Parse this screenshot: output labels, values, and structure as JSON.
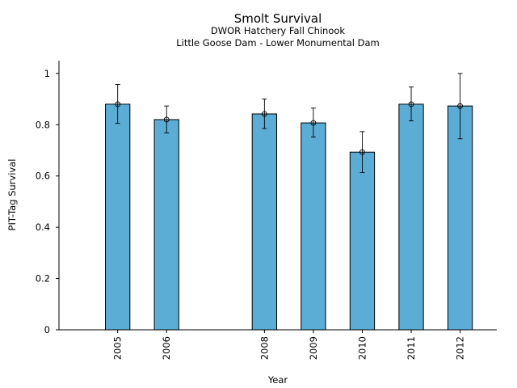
{
  "chart_data": {
    "type": "bar",
    "title": "Smolt Survival",
    "subtitle_lines": [
      "DWOR Hatchery Fall Chinook",
      "Little Goose Dam - Lower Monumental Dam"
    ],
    "xlabel": "Year",
    "ylabel": "PIT-Tag Survival",
    "x": [
      2005,
      2006,
      2008,
      2009,
      2010,
      2011,
      2012
    ],
    "tick_labels": [
      "2005",
      "2006",
      "2008",
      "2009",
      "2010",
      "2011",
      "2012"
    ],
    "values": [
      0.88,
      0.82,
      0.842,
      0.807,
      0.693,
      0.88,
      0.873
    ],
    "error_low": [
      0.805,
      0.768,
      0.785,
      0.752,
      0.613,
      0.815,
      0.745
    ],
    "error_high": [
      0.957,
      0.873,
      0.9,
      0.865,
      0.773,
      0.947,
      1.0
    ],
    "xlim": [
      2003.8,
      2012.75
    ],
    "ylim": [
      0,
      1.05
    ],
    "yticks": [
      0,
      0.2,
      0.4,
      0.6,
      0.8,
      1
    ],
    "ytick_labels": [
      "0",
      "0.2",
      "0.4",
      "0.6",
      "0.8",
      "1"
    ],
    "bar_color": "#5badd6",
    "grid": false,
    "legend": "none"
  }
}
